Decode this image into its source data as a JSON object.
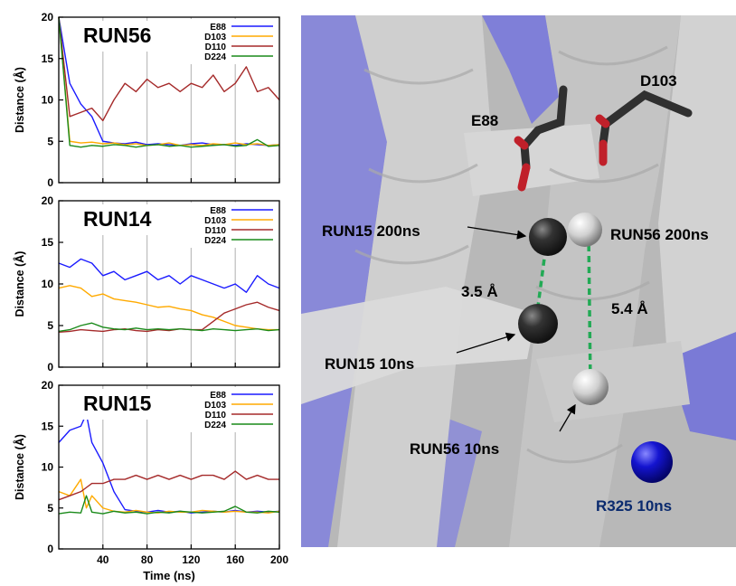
{
  "chart_data": [
    {
      "type": "line",
      "title": "RUN56",
      "ylabel": "Distance (Å)",
      "xlabel": "",
      "xlim": [
        0,
        200
      ],
      "ylim": [
        0,
        20
      ],
      "x_ticks": [
        "40",
        "80",
        "120",
        "160",
        "200"
      ],
      "y_ticks": [
        "0",
        "5",
        "10",
        "15",
        "20"
      ],
      "grid": "vertical",
      "legend": "top-right",
      "x": [
        0,
        10,
        20,
        30,
        40,
        50,
        60,
        70,
        80,
        90,
        100,
        110,
        120,
        130,
        140,
        150,
        160,
        170,
        180,
        190,
        200
      ],
      "series": [
        {
          "name": "E88",
          "color": "#1a1aff",
          "values": [
            20,
            12,
            9.5,
            8,
            5,
            4.8,
            4.7,
            4.9,
            4.6,
            4.7,
            4.6,
            4.5,
            4.7,
            4.8,
            4.6,
            4.6,
            4.5,
            4.7,
            4.6,
            4.5,
            4.6
          ]
        },
        {
          "name": "D103",
          "color": "#ffaa00",
          "values": [
            20,
            5,
            4.8,
            4.9,
            4.7,
            4.8,
            4.6,
            4.7,
            4.5,
            4.6,
            4.8,
            4.5,
            4.6,
            4.5,
            4.7,
            4.6,
            4.8,
            4.6,
            4.7,
            4.5,
            4.6
          ]
        },
        {
          "name": "D110",
          "color": "#a52a2a",
          "values": [
            20,
            8,
            8.5,
            9,
            7.5,
            10,
            12,
            11,
            12.5,
            11.5,
            12,
            11,
            12,
            11.5,
            13,
            11,
            12,
            14,
            11,
            11.5,
            10
          ]
        },
        {
          "name": "D224",
          "color": "#1a8a1a",
          "values": [
            20,
            4.5,
            4.3,
            4.5,
            4.4,
            4.6,
            4.5,
            4.3,
            4.5,
            4.6,
            4.4,
            4.5,
            4.3,
            4.4,
            4.5,
            4.6,
            4.4,
            4.5,
            5.2,
            4.4,
            4.5
          ]
        }
      ]
    },
    {
      "type": "line",
      "title": "RUN14",
      "ylabel": "Distance (Å)",
      "xlabel": "",
      "xlim": [
        0,
        200
      ],
      "ylim": [
        0,
        20
      ],
      "x_ticks": [
        "40",
        "80",
        "120",
        "160",
        "200"
      ],
      "y_ticks": [
        "0",
        "5",
        "10",
        "15",
        "20"
      ],
      "grid": "vertical",
      "legend": "top-right",
      "x": [
        0,
        10,
        20,
        30,
        40,
        50,
        60,
        70,
        80,
        90,
        100,
        110,
        120,
        130,
        140,
        150,
        160,
        170,
        180,
        190,
        200
      ],
      "series": [
        {
          "name": "E88",
          "color": "#1a1aff",
          "values": [
            12.5,
            12,
            13,
            12.5,
            11,
            11.5,
            10.5,
            11,
            11.5,
            10.5,
            11,
            10,
            11,
            10.5,
            10,
            9.5,
            10,
            9,
            11,
            10,
            9.5
          ]
        },
        {
          "name": "D103",
          "color": "#ffaa00",
          "values": [
            9.5,
            9.8,
            9.5,
            8.5,
            8.8,
            8.2,
            8,
            7.8,
            7.5,
            7.2,
            7.3,
            7,
            6.8,
            6.3,
            6,
            5.5,
            5,
            4.8,
            4.6,
            4.5,
            4.5
          ]
        },
        {
          "name": "D110",
          "color": "#a52a2a",
          "values": [
            4.2,
            4.3,
            4.5,
            4.4,
            4.3,
            4.5,
            4.6,
            4.4,
            4.3,
            4.5,
            4.4,
            4.6,
            4.5,
            4.5,
            5.5,
            6.5,
            7,
            7.5,
            7.8,
            7.2,
            6.8
          ]
        },
        {
          "name": "D224",
          "color": "#1a8a1a",
          "values": [
            4.3,
            4.5,
            5,
            5.3,
            4.8,
            4.6,
            4.5,
            4.7,
            4.5,
            4.6,
            4.5,
            4.6,
            4.5,
            4.4,
            4.6,
            4.5,
            4.4,
            4.5,
            4.6,
            4.4,
            4.5
          ]
        }
      ]
    },
    {
      "type": "line",
      "title": "RUN15",
      "ylabel": "Distance (Å)",
      "xlabel": "Time (ns)",
      "xlim": [
        0,
        200
      ],
      "ylim": [
        0,
        20
      ],
      "x_ticks": [
        "40",
        "80",
        "120",
        "160",
        "200"
      ],
      "y_ticks": [
        "0",
        "5",
        "10",
        "15",
        "20"
      ],
      "grid": "vertical",
      "legend": "top-right",
      "x": [
        0,
        10,
        20,
        25,
        30,
        40,
        50,
        60,
        70,
        80,
        90,
        100,
        110,
        120,
        130,
        140,
        150,
        160,
        170,
        180,
        190,
        200
      ],
      "series": [
        {
          "name": "E88",
          "color": "#1a1aff",
          "values": [
            13,
            14.5,
            15,
            16.5,
            13,
            10.5,
            7,
            4.8,
            4.6,
            4.5,
            4.7,
            4.5,
            4.6,
            4.4,
            4.5,
            4.6,
            4.5,
            4.7,
            4.5,
            4.6,
            4.5,
            4.6
          ]
        },
        {
          "name": "D103",
          "color": "#ffaa00",
          "values": [
            7,
            6.5,
            8.5,
            5,
            6.5,
            5,
            4.6,
            4.5,
            4.7,
            4.5,
            4.4,
            4.6,
            4.5,
            4.5,
            4.7,
            4.6,
            4.5,
            4.6,
            4.5,
            4.5,
            4.4,
            4.6
          ]
        },
        {
          "name": "D110",
          "color": "#a52a2a",
          "values": [
            6,
            6.5,
            7,
            7.5,
            8,
            8,
            8.5,
            8.5,
            9,
            8.5,
            9,
            8.5,
            9,
            8.5,
            9,
            9,
            8.5,
            9.5,
            8.5,
            9,
            8.5,
            8.5
          ]
        },
        {
          "name": "D224",
          "color": "#1a8a1a",
          "values": [
            4.3,
            4.5,
            4.4,
            6.5,
            4.5,
            4.3,
            4.6,
            4.4,
            4.5,
            4.3,
            4.5,
            4.4,
            4.6,
            4.5,
            4.4,
            4.5,
            4.6,
            5.2,
            4.5,
            4.4,
            4.6,
            4.5
          ]
        }
      ]
    }
  ],
  "structure": {
    "residues": {
      "e88": "E88",
      "d103": "D103",
      "r325": "R325 10ns"
    },
    "annotations": {
      "run15_200": "RUN15 200ns",
      "run56_200": "RUN56 200ns",
      "run15_10": "RUN15 10ns",
      "run56_10": "RUN56 10ns",
      "dist_run15": "3.5 Å",
      "dist_run56": "5.4 Å"
    },
    "colors": {
      "helix_gray": "#c8c8c8",
      "helix_purple": "#7f7fe0",
      "dashed": "#22aa55",
      "r325": "#0a2a6e",
      "ion_blue": "#1010cc"
    }
  }
}
